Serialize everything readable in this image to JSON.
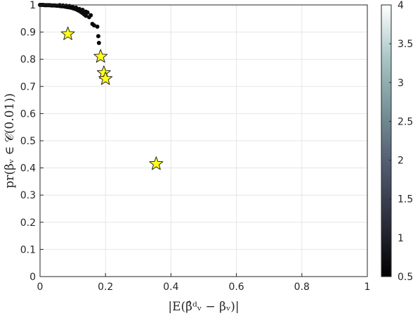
{
  "chart_data": {
    "type": "scatter",
    "title": "",
    "xlabel": "|E(β̂ᵈᵥ − βᵥ)|",
    "ylabel": "pr(βᵥ ∈ 𝒞(0.01))",
    "xlim": [
      0,
      1
    ],
    "ylim": [
      0,
      1
    ],
    "x_ticks": [
      0,
      0.2,
      0.4,
      0.6,
      0.8,
      1
    ],
    "x_tick_labels": [
      "0",
      "0.2",
      "0.4",
      "0.6",
      "0.8",
      "1"
    ],
    "y_ticks": [
      0,
      0.1,
      0.2,
      0.3,
      0.4,
      0.5,
      0.6,
      0.7,
      0.8,
      0.9,
      1
    ],
    "y_tick_labels": [
      "0",
      "0.1",
      "0.2",
      "0.3",
      "0.4",
      "0.5",
      "0.6",
      "0.7",
      "0.8",
      "0.9",
      "1"
    ],
    "grid": true,
    "series": [
      {
        "marker": "dot",
        "color": "#0a0a0a",
        "points": [
          [
            0.0,
            1.0
          ],
          [
            0.005,
            1.0
          ],
          [
            0.01,
            1.0
          ],
          [
            0.015,
            0.999
          ],
          [
            0.02,
            0.999
          ],
          [
            0.025,
            0.999
          ],
          [
            0.03,
            0.999
          ],
          [
            0.035,
            0.998
          ],
          [
            0.04,
            0.998
          ],
          [
            0.045,
            0.998
          ],
          [
            0.05,
            0.997
          ],
          [
            0.055,
            0.997
          ],
          [
            0.06,
            0.996
          ],
          [
            0.065,
            0.995
          ],
          [
            0.07,
            0.995
          ],
          [
            0.075,
            0.994
          ],
          [
            0.08,
            0.993
          ],
          [
            0.085,
            0.992
          ],
          [
            0.09,
            0.991
          ],
          [
            0.095,
            0.99
          ],
          [
            0.1,
            0.988
          ],
          [
            0.105,
            0.986
          ],
          [
            0.11,
            0.984
          ],
          [
            0.115,
            0.981
          ],
          [
            0.12,
            0.978
          ],
          [
            0.125,
            0.974
          ],
          [
            0.13,
            0.97
          ],
          [
            0.135,
            0.965
          ],
          [
            0.14,
            0.96
          ],
          [
            0.145,
            0.972
          ],
          [
            0.15,
            0.955
          ],
          [
            0.155,
            0.962
          ],
          [
            0.16,
            0.93
          ],
          [
            0.165,
            0.925
          ],
          [
            0.175,
            0.92
          ],
          [
            0.178,
            0.885
          ],
          [
            0.18,
            0.86
          ],
          [
            0.1,
            0.992
          ],
          [
            0.11,
            0.99
          ],
          [
            0.12,
            0.985
          ],
          [
            0.13,
            0.982
          ],
          [
            0.14,
            0.975
          ],
          [
            0.06,
            0.999
          ],
          [
            0.07,
            0.998
          ],
          [
            0.08,
            0.997
          ],
          [
            0.09,
            0.996
          ]
        ]
      },
      {
        "marker": "star",
        "color": "#ffff1a",
        "points": [
          [
            0.085,
            0.893
          ],
          [
            0.185,
            0.81
          ],
          [
            0.195,
            0.75
          ],
          [
            0.2,
            0.728
          ],
          [
            0.355,
            0.415
          ]
        ]
      }
    ],
    "colorbar": {
      "range": [
        0.5,
        4
      ],
      "ticks": [
        0.5,
        1,
        1.5,
        2,
        2.5,
        3,
        3.5,
        4
      ],
      "tick_labels": [
        "0.5",
        "1",
        "1.5",
        "2",
        "2.5",
        "3",
        "3.5",
        "4"
      ],
      "colormap": [
        "#000000",
        "#2b2d3a",
        "#4f586d",
        "#758f96",
        "#a8c4c4",
        "#ffffff"
      ]
    }
  }
}
